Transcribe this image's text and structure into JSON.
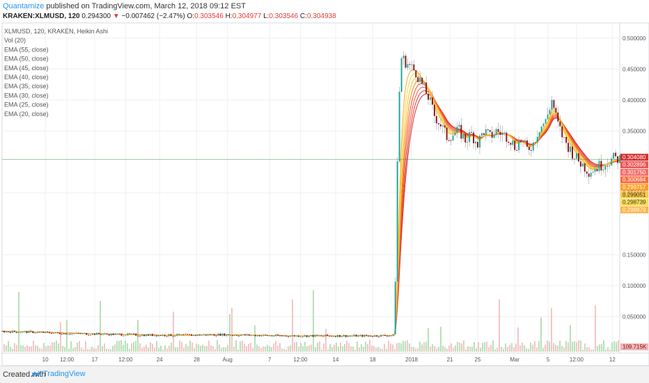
{
  "header": {
    "author": "Quantamize",
    "published_text": "published on TradingView.com, March 12, 2018 09:12 EST",
    "symbol": "KRAKEN:XLMUSD, 120",
    "last": "0.294300",
    "change_arrow": "▼",
    "change": "−0.007462 (−2.47%)",
    "o_label": "O:",
    "o_value": "0.303546",
    "h_label": "H:",
    "h_value": "0.304977",
    "l_label": "L:",
    "l_value": "0.303546",
    "c_label": "C:",
    "c_value": "0.304938"
  },
  "footer": {
    "created_with": "Created with",
    "brand": "TradingView"
  },
  "chart_data": {
    "type": "line",
    "title": "XLMUSD, 120, KRAKEN, Heikin Ashi",
    "legend": [
      "XLMUSD, 120, KRAKEN, Heikin Ashi",
      "Vol (20)",
      "EMA (55, close)",
      "EMA (50, close)",
      "EMA (45, close)",
      "EMA (40, close)",
      "EMA (35, close)",
      "EMA (30, close)",
      "EMA (25, close)",
      "EMA (20, close)"
    ],
    "x_tick_labels": [
      "10",
      "12:00",
      "17",
      "12:00",
      "24",
      "28",
      "Aug",
      "7",
      "12:00",
      "14",
      "18",
      "2018",
      "21",
      "25",
      "Mar",
      "5",
      "12:00",
      "12"
    ],
    "y_tick_labels": [
      "0.500000",
      "0.450000",
      "0.400000",
      "0.350000",
      "0.250000",
      "0.150000",
      "0.100000",
      "0.050000",
      "0.000000"
    ],
    "ylim": [
      0,
      0.52
    ],
    "grid": true,
    "legend_position": "top-left",
    "price_series_x": [
      0,
      5,
      10,
      15,
      20,
      25,
      30,
      35,
      40,
      45,
      50,
      55,
      60,
      63.5,
      64,
      64.5,
      65,
      66,
      67,
      68,
      69,
      70,
      71,
      72,
      73,
      74,
      75,
      76,
      77,
      78,
      79,
      80,
      81,
      82,
      83,
      84,
      85,
      86,
      87,
      88,
      89,
      90,
      91,
      92,
      93,
      94,
      95,
      96,
      97,
      98,
      99,
      100
    ],
    "price_series_y": [
      0.026,
      0.025,
      0.023,
      0.022,
      0.021,
      0.02,
      0.02,
      0.021,
      0.02,
      0.019,
      0.019,
      0.019,
      0.019,
      0.02,
      0.3,
      0.47,
      0.465,
      0.455,
      0.445,
      0.425,
      0.405,
      0.375,
      0.36,
      0.34,
      0.345,
      0.35,
      0.335,
      0.345,
      0.33,
      0.35,
      0.34,
      0.35,
      0.345,
      0.34,
      0.325,
      0.335,
      0.32,
      0.33,
      0.355,
      0.365,
      0.4,
      0.36,
      0.335,
      0.32,
      0.305,
      0.295,
      0.285,
      0.29,
      0.295,
      0.3,
      0.305,
      0.3049
    ],
    "ema_series": [
      {
        "name": "EMA (55, close)",
        "color": "#d32f2f",
        "value": 0.30408
      },
      {
        "name": "EMA (50, close)",
        "color": "#e53935",
        "value": 0.302896
      },
      {
        "name": "EMA (45, close)",
        "color": "#ef5350",
        "value": 0.30175
      },
      {
        "name": "EMA (40, close)",
        "color": "#f4511e",
        "value": 0.300684
      },
      {
        "name": "EMA (35, close)",
        "color": "#fb8c00",
        "value": 0.299757
      },
      {
        "name": "EMA (30, close)",
        "color": "#fbc02d",
        "value": 0.299051
      },
      {
        "name": "EMA (25, close)",
        "color": "#fdd835",
        "value": 0.298739
      },
      {
        "name": "EMA (20, close)",
        "color": "#ffa726",
        "value": 0.298979
      }
    ],
    "price_axis_labels": [
      "0.304080",
      "0.302896",
      "0.301750",
      "0.300684",
      "0.299757",
      "0.299051",
      "0.298739",
      "0.298979"
    ],
    "volume_label": "109.715K",
    "colors": {
      "up": "#26a69a",
      "down": "#8b1a1a",
      "volume_up": "#b7e0b7",
      "volume_down": "#f4c4c4",
      "grid": "#eef0f3",
      "last_price_line": "#2e7d32"
    }
  }
}
